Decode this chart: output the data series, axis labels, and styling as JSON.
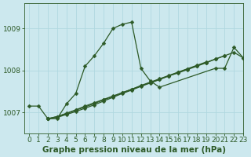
{
  "title": "Graphe pression niveau de la mer (hPa)",
  "background_color": "#cce8ee",
  "plot_bg_color": "#cce8ee",
  "line_color": "#2d5a27",
  "grid_color": "#b0d8e0",
  "ylim": [
    1006.5,
    1009.6
  ],
  "xlim": [
    -0.5,
    23
  ],
  "yticks": [
    1007,
    1008,
    1009
  ],
  "xticks": [
    0,
    1,
    2,
    3,
    4,
    5,
    6,
    7,
    8,
    9,
    10,
    11,
    12,
    13,
    14,
    15,
    16,
    17,
    18,
    19,
    20,
    21,
    22,
    23
  ],
  "series": [
    {
      "x": [
        0,
        1,
        2,
        3,
        4,
        5,
        6,
        7,
        8,
        9,
        10,
        11,
        12,
        13,
        14,
        20,
        21,
        22,
        23
      ],
      "y": [
        1007.15,
        1007.15,
        1006.85,
        1006.85,
        1007.2,
        1007.45,
        1008.1,
        1008.35,
        1008.65,
        1009.0,
        1009.1,
        1009.15,
        1008.05,
        1007.75,
        1007.6,
        1008.05,
        1008.05,
        1008.55,
        1008.3
      ]
    },
    {
      "x": [
        2,
        3,
        4,
        5,
        6,
        7,
        8,
        9,
        10,
        11,
        12,
        13,
        14,
        15,
        16,
        17,
        18,
        19,
        20,
        21,
        22,
        23
      ],
      "y": [
        1006.85,
        1006.88,
        1006.95,
        1007.02,
        1007.1,
        1007.18,
        1007.27,
        1007.36,
        1007.45,
        1007.53,
        1007.62,
        1007.7,
        1007.78,
        1007.87,
        1007.94,
        1008.02,
        1008.1,
        1008.18,
        1008.27,
        1008.35,
        1008.43,
        1008.3
      ]
    },
    {
      "x": [
        2,
        3,
        4,
        5,
        6,
        7,
        8,
        9,
        10,
        11,
        12,
        13,
        14,
        15,
        16,
        17,
        18,
        19,
        20,
        21
      ],
      "y": [
        1006.85,
        1006.9,
        1006.97,
        1007.05,
        1007.13,
        1007.21,
        1007.3,
        1007.38,
        1007.47,
        1007.55,
        1007.63,
        1007.71,
        1007.79,
        1007.87,
        1007.95,
        1008.03,
        1008.11,
        1008.19,
        1008.27,
        1008.35
      ]
    },
    {
      "x": [
        2,
        3,
        4,
        5,
        6,
        7,
        8,
        9,
        10,
        11,
        12,
        13,
        14,
        15,
        16,
        17,
        18,
        19
      ],
      "y": [
        1006.85,
        1006.9,
        1006.98,
        1007.06,
        1007.15,
        1007.23,
        1007.31,
        1007.39,
        1007.47,
        1007.55,
        1007.64,
        1007.72,
        1007.8,
        1007.88,
        1007.96,
        1008.04,
        1008.12,
        1008.2
      ]
    }
  ],
  "title_fontsize": 7.5,
  "tick_fontsize": 6.5,
  "marker_size": 2.5,
  "linewidth": 0.9
}
